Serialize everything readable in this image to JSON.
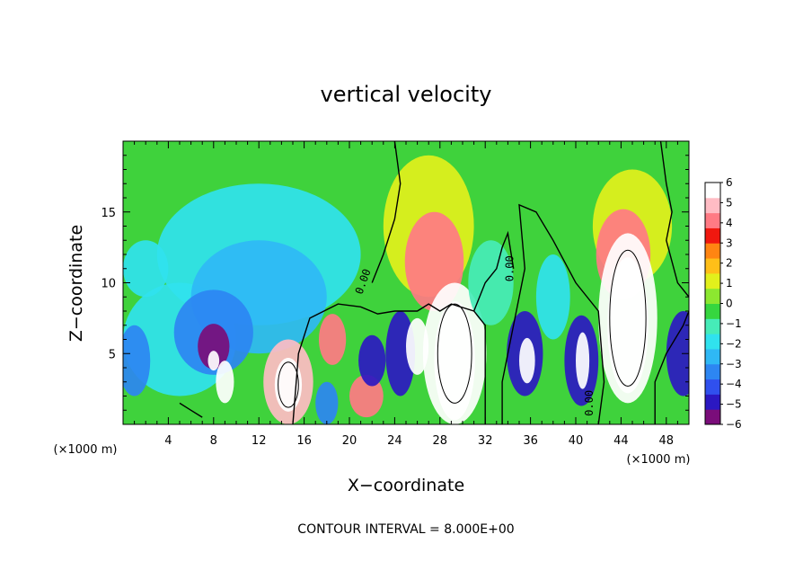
{
  "chart_data": {
    "type": "heatmap",
    "title": "vertical velocity",
    "xlabel": "X−coordinate",
    "ylabel": "Z−coordinate",
    "x_unit": "(×1000 m)",
    "z_unit": "(×1000 m)",
    "xlim": [
      0,
      50
    ],
    "ylim": [
      0,
      20
    ],
    "x_ticks": [
      4,
      8,
      12,
      16,
      20,
      24,
      28,
      32,
      36,
      40,
      44,
      48
    ],
    "y_ticks": [
      5,
      10,
      15
    ],
    "colorbar": {
      "range": [
        -6,
        6
      ],
      "labels": [
        "6",
        "5",
        "4",
        "3",
        "2",
        "1",
        "0",
        "−1",
        "−2",
        "−3",
        "−4",
        "−5",
        "−6"
      ],
      "colors": [
        "#7a0d7a",
        "#2b18c2",
        "#3050ee",
        "#2d86f2",
        "#2fb8f5",
        "#30e2ee",
        "#46ecb8",
        "#36d63f",
        "#8ce830",
        "#e2f01c",
        "#ffbf18",
        "#ff8512",
        "#f0180f",
        "#ff7a84",
        "#ffbcc4",
        "#ffffff"
      ]
    },
    "contour_label": "0.00",
    "annotation": "CONTOUR INTERVAL = 8.000E+00",
    "features": [
      {
        "type": "updraft",
        "x": 29.3,
        "z": 5.2,
        "peak": 20
      },
      {
        "type": "updraft",
        "x": 44.6,
        "z": 8.5,
        "peak": 20
      },
      {
        "type": "updraft",
        "x": 14.6,
        "z": 2.8,
        "peak": 12
      },
      {
        "type": "updraft",
        "x": 26.7,
        "z": 11.5,
        "peak": 5
      },
      {
        "type": "updraft",
        "x": 44.0,
        "z": 12.5,
        "peak": 5
      },
      {
        "type": "downdraft",
        "x": 8.0,
        "z": 5.5,
        "peak": -6
      },
      {
        "type": "downdraft",
        "x": 14.0,
        "z": 11.0,
        "peak": -3.5
      },
      {
        "type": "downdraft",
        "x": 35.5,
        "z": 5.0,
        "peak": -5
      },
      {
        "type": "downdraft",
        "x": 40.5,
        "z": 4.5,
        "peak": -5
      },
      {
        "type": "downdraft",
        "x": 24.5,
        "z": 5.0,
        "peak": -5
      },
      {
        "type": "downdraft",
        "x": 18.0,
        "z": 1.5,
        "peak": -4
      },
      {
        "type": "downdraft",
        "x": 1.0,
        "z": 4.5,
        "peak": -4
      }
    ],
    "grid": false
  }
}
